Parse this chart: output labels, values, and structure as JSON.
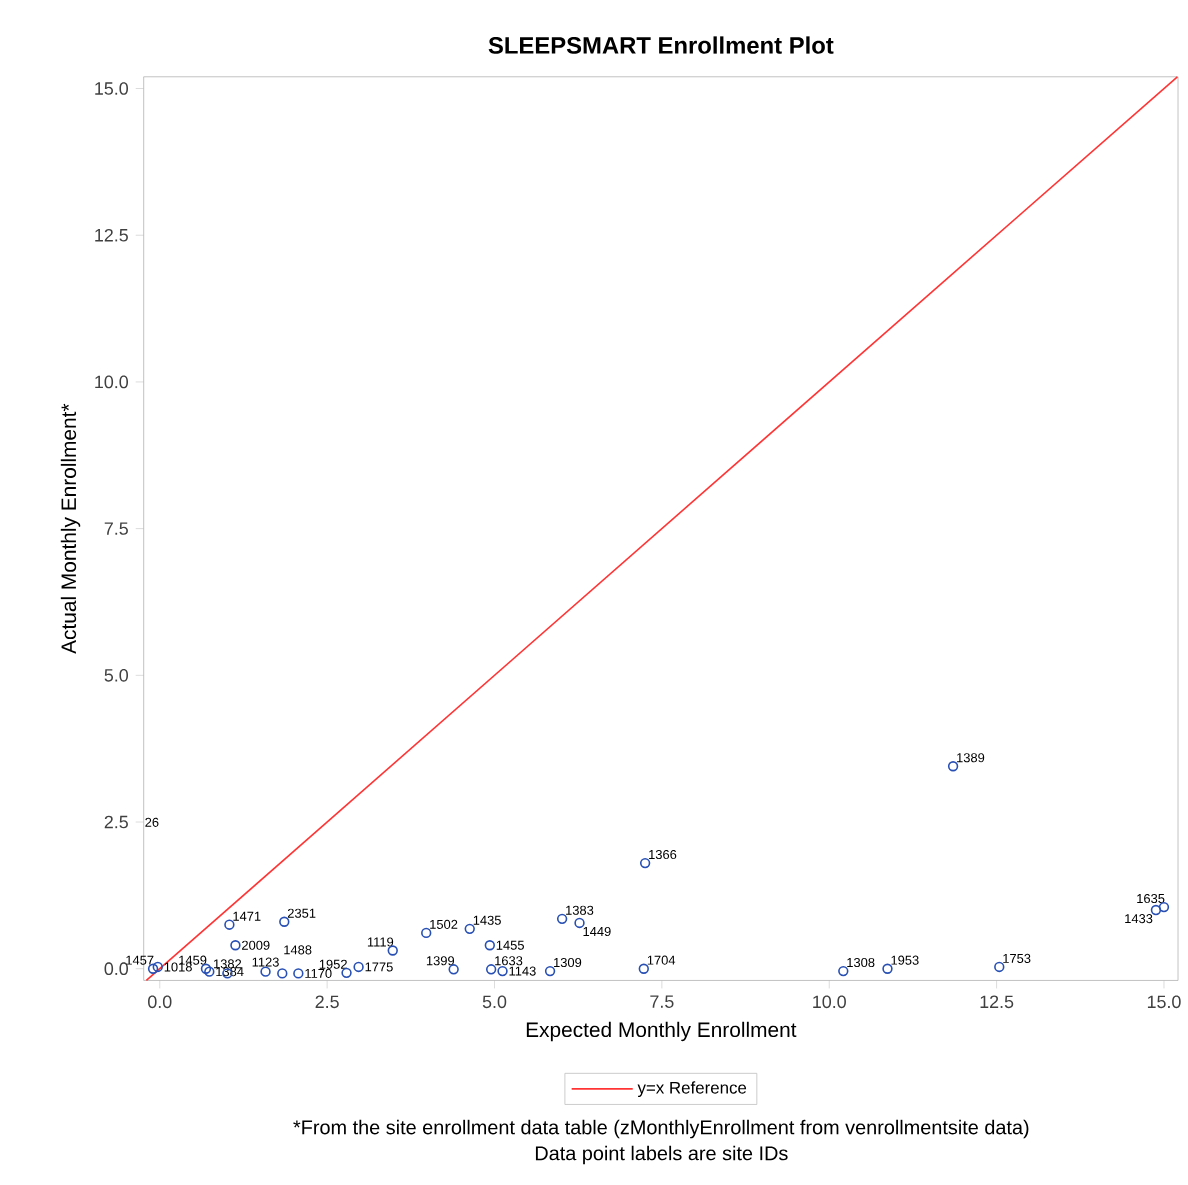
{
  "chart_data": {
    "type": "scatter",
    "title": "SLEEPSMART Enrollment Plot",
    "xlabel": "Expected Monthly Enrollment",
    "ylabel": "Actual Monthly Enrollment*",
    "xlim": [
      -0.24,
      15.21
    ],
    "ylim": [
      -0.2,
      15.2
    ],
    "xticks": [
      {
        "value": 0,
        "label": "0.0"
      },
      {
        "value": 2.5,
        "label": "2.5"
      },
      {
        "value": 5,
        "label": "5.0"
      },
      {
        "value": 7.5,
        "label": "7.5"
      },
      {
        "value": 10,
        "label": "10.0"
      },
      {
        "value": 12.5,
        "label": "12.5"
      },
      {
        "value": 15,
        "label": "15.0"
      }
    ],
    "yticks": [
      {
        "value": 0,
        "label": "0.0"
      },
      {
        "value": 2.5,
        "label": "2.5"
      },
      {
        "value": 5,
        "label": "5.0"
      },
      {
        "value": 7.5,
        "label": "7.5"
      },
      {
        "value": 10,
        "label": "10.0"
      },
      {
        "value": 12.5,
        "label": "12.5"
      },
      {
        "value": 15,
        "label": "15.0"
      }
    ],
    "legend": "bottom",
    "series": [
      {
        "color": "#2850b4",
        "marker": "circle",
        "x": [
          -0.1,
          -0.03,
          0.69,
          0.74,
          1.04,
          1.13,
          1.01,
          1.58,
          1.86,
          1.83,
          2.07,
          2.79,
          2.97,
          3.48,
          3.98,
          4.63,
          4.93,
          4.39,
          4.95,
          5.12,
          5.83,
          6.01,
          6.27,
          7.25,
          7.23,
          11.85,
          10.21,
          10.87,
          12.54,
          14.88,
          15.0
        ],
        "values": [
          0.0,
          0.03,
          0.0,
          -0.05,
          0.75,
          0.4,
          -0.08,
          -0.05,
          0.8,
          -0.08,
          -0.08,
          -0.07,
          0.03,
          0.31,
          0.61,
          0.68,
          0.4,
          -0.01,
          -0.01,
          -0.04,
          -0.04,
          0.85,
          0.78,
          1.8,
          0.0,
          3.45,
          -0.04,
          0.0,
          0.03,
          1.0,
          1.05
        ]
      },
      {
        "type": "line",
        "name": "y=x Reference",
        "color": "#ff3333",
        "marker": "none",
        "x": [
          -0.2,
          15.2
        ],
        "values": [
          -0.2,
          15.2
        ]
      }
    ],
    "annotations": [
      {
        "text": "1457",
        "x": -0.1,
        "y": 0.0
      },
      {
        "text": "1018",
        "x": -0.03,
        "y": 0.03
      },
      {
        "text": "1459",
        "x": 0.69,
        "y": 0.0
      },
      {
        "text": "1384",
        "x": 0.74,
        "y": -0.05
      },
      {
        "text": "1471",
        "x": 1.04,
        "y": 0.75
      },
      {
        "text": "2009",
        "x": 1.13,
        "y": 0.4
      },
      {
        "text": "1382",
        "x": 1.01,
        "y": -0.08
      },
      {
        "text": "1123",
        "x": 1.58,
        "y": -0.05
      },
      {
        "text": "2351",
        "x": 1.86,
        "y": 0.8
      },
      {
        "text": "1488",
        "x": 1.83,
        "y": -0.08
      },
      {
        "text": "1170",
        "x": 2.07,
        "y": -0.08
      },
      {
        "text": "1952",
        "x": 2.79,
        "y": -0.07
      },
      {
        "text": "1775",
        "x": 2.97,
        "y": 0.03
      },
      {
        "text": "1119",
        "x": 3.48,
        "y": 0.31
      },
      {
        "text": "1502",
        "x": 3.98,
        "y": 0.61
      },
      {
        "text": "1435",
        "x": 4.63,
        "y": 0.68
      },
      {
        "text": "1455",
        "x": 4.93,
        "y": 0.4
      },
      {
        "text": "1399",
        "x": 4.39,
        "y": -0.01
      },
      {
        "text": "1633",
        "x": 4.95,
        "y": -0.01
      },
      {
        "text": "1143",
        "x": 5.12,
        "y": -0.04
      },
      {
        "text": "1309",
        "x": 5.83,
        "y": -0.04
      },
      {
        "text": "1383",
        "x": 6.01,
        "y": 0.85
      },
      {
        "text": "1449",
        "x": 6.27,
        "y": 0.78
      },
      {
        "text": "1366",
        "x": 7.25,
        "y": 1.8
      },
      {
        "text": "1704",
        "x": 7.23,
        "y": 0.0
      },
      {
        "text": "1389",
        "x": 11.85,
        "y": 3.45
      },
      {
        "text": "1308",
        "x": 10.21,
        "y": -0.04
      },
      {
        "text": "1953",
        "x": 10.87,
        "y": 0.0
      },
      {
        "text": "1753",
        "x": 12.54,
        "y": 0.03
      },
      {
        "text": "1433",
        "x": 14.88,
        "y": 1.0
      },
      {
        "text": "1635",
        "x": 15.0,
        "y": 1.05
      },
      "26",
      "*From the site enrollment data table (zMonthlyEnrollment from venrollmentsite data)",
      "Data point labels are site IDs"
    ]
  }
}
